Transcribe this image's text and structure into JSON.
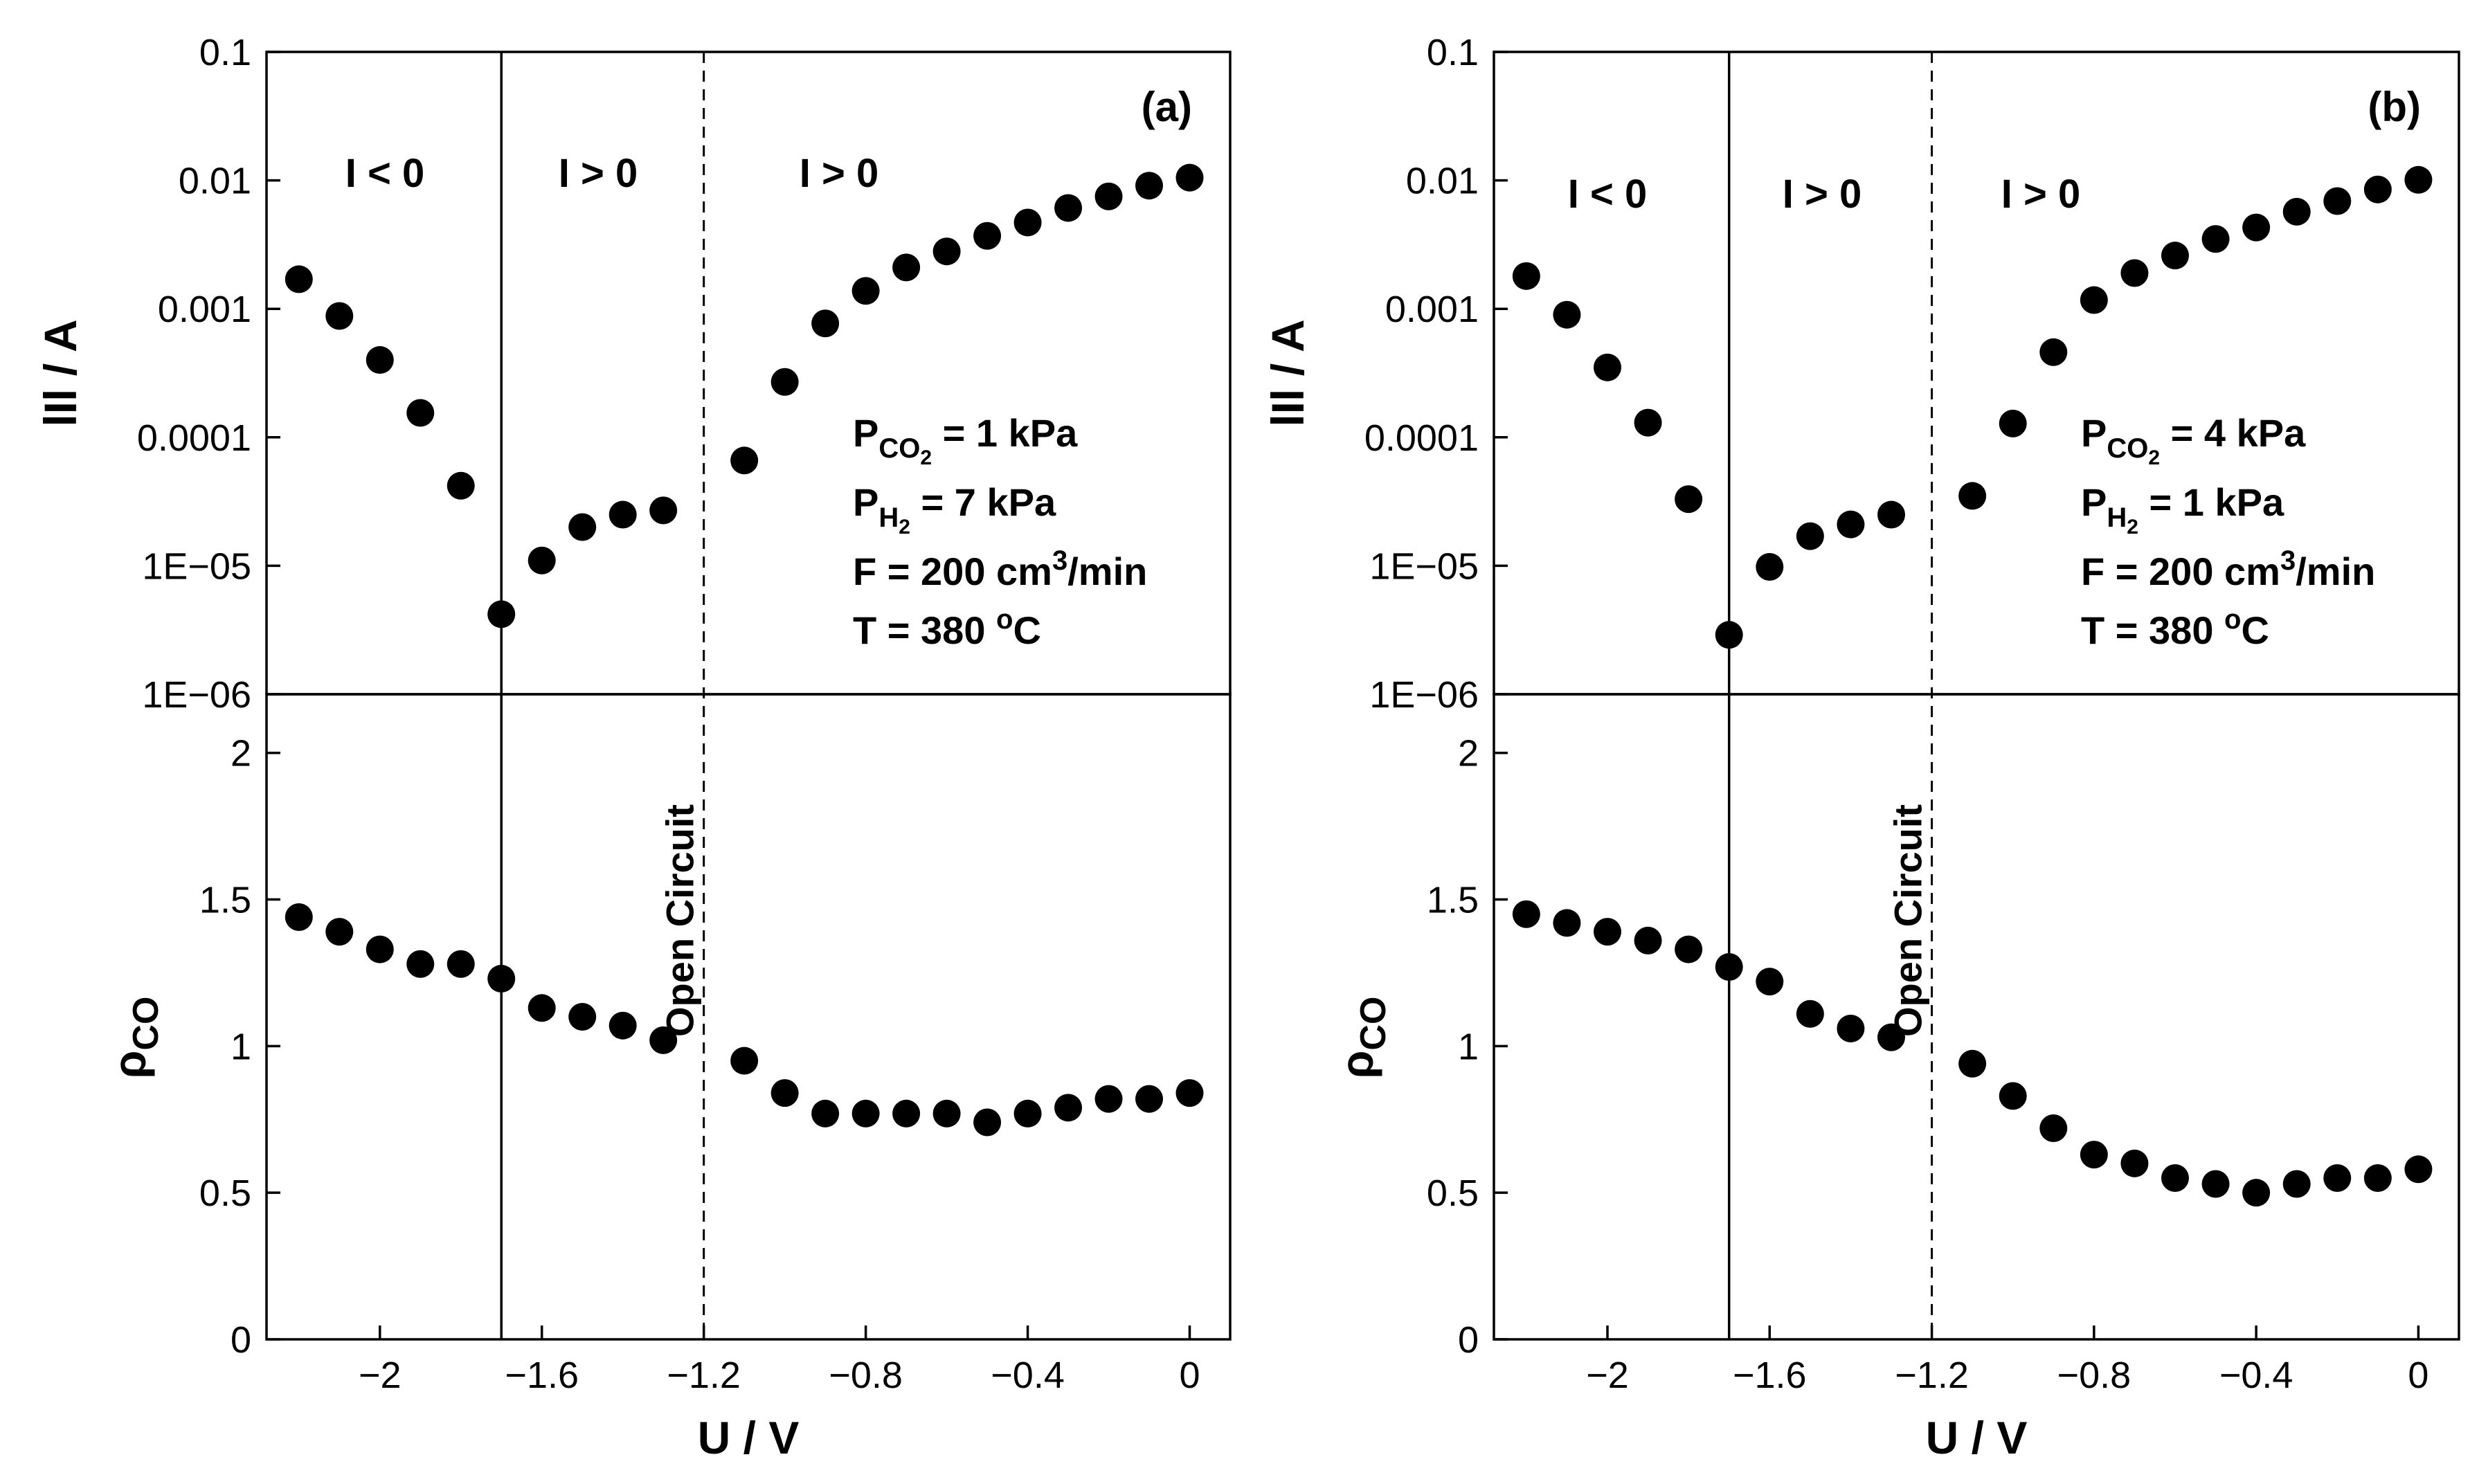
{
  "chart_data": [
    {
      "type": "scatter",
      "panel": "(a)",
      "title": "",
      "xlabel": "U / V",
      "xlim": [
        -2.28,
        0.1
      ],
      "xticks": [
        -2,
        -1.6,
        -1.2,
        -0.8,
        -0.4,
        0
      ],
      "xtick_labels": [
        "−2",
        "−1.6",
        "−1.2",
        "−0.8",
        "−0.4",
        "0"
      ],
      "solid_line_x": -1.7,
      "dashed_line_x": -1.2,
      "dashed_line_label": "Open Circuit",
      "regions": [
        "I < 0",
        "I > 0",
        "I > 0"
      ],
      "conditions": [
        {
          "main": "P",
          "sub": "CO",
          "sub2": "2",
          "rest": " = 1 kPa"
        },
        {
          "main": "P",
          "sub": "H",
          "sub2": "2",
          "rest": " = 7 kPa"
        },
        {
          "main": "F = 200 cm",
          "sup": "3",
          "rest": "/min"
        },
        {
          "main": "T = 380 ",
          "sup": "o",
          "rest": "C"
        }
      ],
      "top": {
        "ylabel": "lIl / A",
        "scale": "log",
        "ylim": [
          1e-06,
          0.1
        ],
        "ytick_labels": [
          "0.1",
          "0.01",
          "0.001",
          "0.0001",
          "1E−05",
          "1E−06"
        ],
        "x": [
          -2.2,
          -2.1,
          -2.0,
          -1.9,
          -1.8,
          -1.7,
          -1.6,
          -1.5,
          -1.4,
          -1.3,
          -1.1,
          -1.0,
          -0.9,
          -0.8,
          -0.7,
          -0.6,
          -0.5,
          -0.4,
          -0.3,
          -0.2,
          -0.1,
          0.0
        ],
        "y": [
          0.0017,
          0.00088,
          0.0004,
          0.000155,
          4.2e-05,
          4.2e-06,
          1.1e-05,
          2e-05,
          2.5e-05,
          2.7e-05,
          6.6e-05,
          0.00027,
          0.00077,
          0.00138,
          0.0021,
          0.0028,
          0.0037,
          0.0047,
          0.0061,
          0.0075,
          0.0091,
          0.0105
        ]
      },
      "bottom": {
        "ylabel": "ρ",
        "ylabel_sub": "CO",
        "ylim": [
          0,
          2.2
        ],
        "yticks": [
          0,
          0.5,
          1,
          1.5,
          2
        ],
        "ytick_labels": [
          "0",
          "0.5",
          "1",
          "1.5",
          "2"
        ],
        "x": [
          -2.2,
          -2.1,
          -2.0,
          -1.9,
          -1.8,
          -1.7,
          -1.6,
          -1.5,
          -1.4,
          -1.3,
          -1.1,
          -1.0,
          -0.9,
          -0.8,
          -0.7,
          -0.6,
          -0.5,
          -0.4,
          -0.3,
          -0.2,
          -0.1,
          0.0
        ],
        "y": [
          1.44,
          1.39,
          1.33,
          1.28,
          1.28,
          1.23,
          1.13,
          1.1,
          1.07,
          1.02,
          0.95,
          0.84,
          0.77,
          0.77,
          0.77,
          0.77,
          0.74,
          0.77,
          0.79,
          0.82,
          0.82,
          0.84
        ]
      }
    },
    {
      "type": "scatter",
      "panel": "(b)",
      "title": "",
      "xlabel": "U / V",
      "xlim": [
        -2.28,
        0.1
      ],
      "xticks": [
        -2,
        -1.6,
        -1.2,
        -0.8,
        -0.4,
        0
      ],
      "xtick_labels": [
        "−2",
        "−1.6",
        "−1.2",
        "−0.8",
        "−0.4",
        "0"
      ],
      "solid_line_x": -1.7,
      "dashed_line_x": -1.2,
      "dashed_line_label": "Open Circuit",
      "regions": [
        "I < 0",
        "I > 0",
        "I > 0"
      ],
      "conditions": [
        {
          "main": "P",
          "sub": "CO",
          "sub2": "2",
          "rest": " = 4 kPa"
        },
        {
          "main": "P",
          "sub": "H",
          "sub2": "2",
          "rest": " = 1 kPa"
        },
        {
          "main": "F = 200 cm",
          "sup": "3",
          "rest": "/min"
        },
        {
          "main": "T = 380 ",
          "sup": "o",
          "rest": "C"
        }
      ],
      "top": {
        "ylabel": "lIl / A",
        "scale": "log",
        "ylim": [
          1e-06,
          0.1
        ],
        "ytick_labels": [
          "0.1",
          "0.01",
          "0.001",
          "0.0001",
          "1E−05",
          "1E−06"
        ],
        "x": [
          -2.2,
          -2.1,
          -2.0,
          -1.9,
          -1.8,
          -1.7,
          -1.6,
          -1.5,
          -1.4,
          -1.3,
          -1.1,
          -1.0,
          -0.9,
          -0.8,
          -0.7,
          -0.6,
          -0.5,
          -0.4,
          -0.3,
          -0.2,
          -0.1,
          0.0
        ],
        "y": [
          0.0018,
          0.0009,
          0.00035,
          0.00013,
          3.3e-05,
          2.9e-06,
          9.8e-06,
          1.7e-05,
          2.1e-05,
          2.5e-05,
          3.5e-05,
          0.000128,
          0.00046,
          0.00117,
          0.0019,
          0.0026,
          0.0035,
          0.0043,
          0.0057,
          0.0069,
          0.0085,
          0.0101
        ]
      },
      "bottom": {
        "ylabel": "ρ",
        "ylabel_sub": "CO",
        "ylim": [
          0,
          2.2
        ],
        "yticks": [
          0,
          0.5,
          1,
          1.5,
          2
        ],
        "ytick_labels": [
          "0",
          "0.5",
          "1",
          "1.5",
          "2"
        ],
        "x": [
          -2.2,
          -2.1,
          -2.0,
          -1.9,
          -1.8,
          -1.7,
          -1.6,
          -1.5,
          -1.4,
          -1.3,
          -1.1,
          -1.0,
          -0.9,
          -0.8,
          -0.7,
          -0.6,
          -0.5,
          -0.4,
          -0.3,
          -0.2,
          -0.1,
          0.0
        ],
        "y": [
          1.45,
          1.42,
          1.39,
          1.36,
          1.33,
          1.27,
          1.22,
          1.11,
          1.06,
          1.03,
          0.94,
          0.83,
          0.72,
          0.63,
          0.6,
          0.55,
          0.53,
          0.5,
          0.53,
          0.55,
          0.55,
          0.58
        ]
      }
    }
  ]
}
